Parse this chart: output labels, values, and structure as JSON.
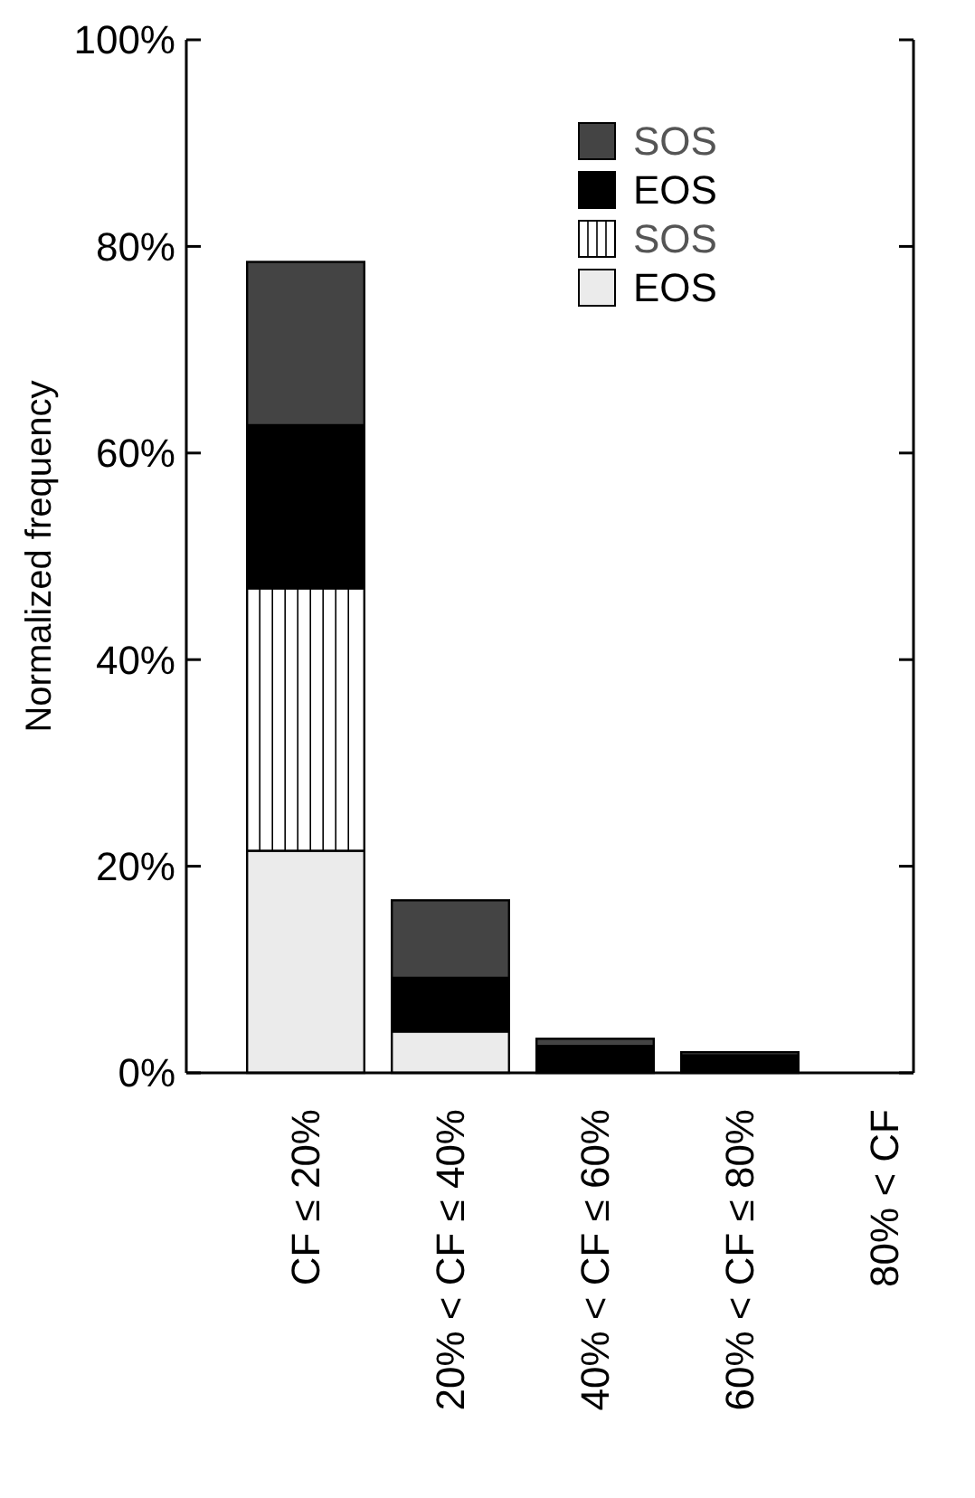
{
  "chart_data": {
    "type": "bar",
    "stacked": true,
    "ylabel": "Normalized frequency",
    "categories": [
      "CF ≤ 20%",
      "20% < CF ≤ 40%",
      "40% < CF ≤ 60%",
      "60% < CF ≤ 80%",
      "80% < CF"
    ],
    "series": [
      {
        "name": "EOS",
        "color": "#ebebeb",
        "values": [
          21.5,
          4.0,
          0,
          0,
          0
        ]
      },
      {
        "name": "SOS",
        "color": "#ffffff",
        "values": [
          25.4,
          0,
          0,
          0,
          0
        ]
      },
      {
        "name": "EOS",
        "color": "#000000",
        "values": [
          15.8,
          5.2,
          2.6,
          1.7,
          0
        ]
      },
      {
        "name": "SOS",
        "color": "#444444",
        "values": [
          15.8,
          7.5,
          0.7,
          0.3,
          0
        ]
      }
    ],
    "ylim": [
      0,
      100
    ],
    "yticks": [
      {
        "value": 0,
        "label": "0%"
      },
      {
        "value": 20,
        "label": "20%"
      },
      {
        "value": 40,
        "label": "40%"
      },
      {
        "value": 60,
        "label": "60%"
      },
      {
        "value": 80,
        "label": "80%"
      },
      {
        "value": 100,
        "label": "100%"
      }
    ],
    "grid": false,
    "legend": "top right"
  }
}
